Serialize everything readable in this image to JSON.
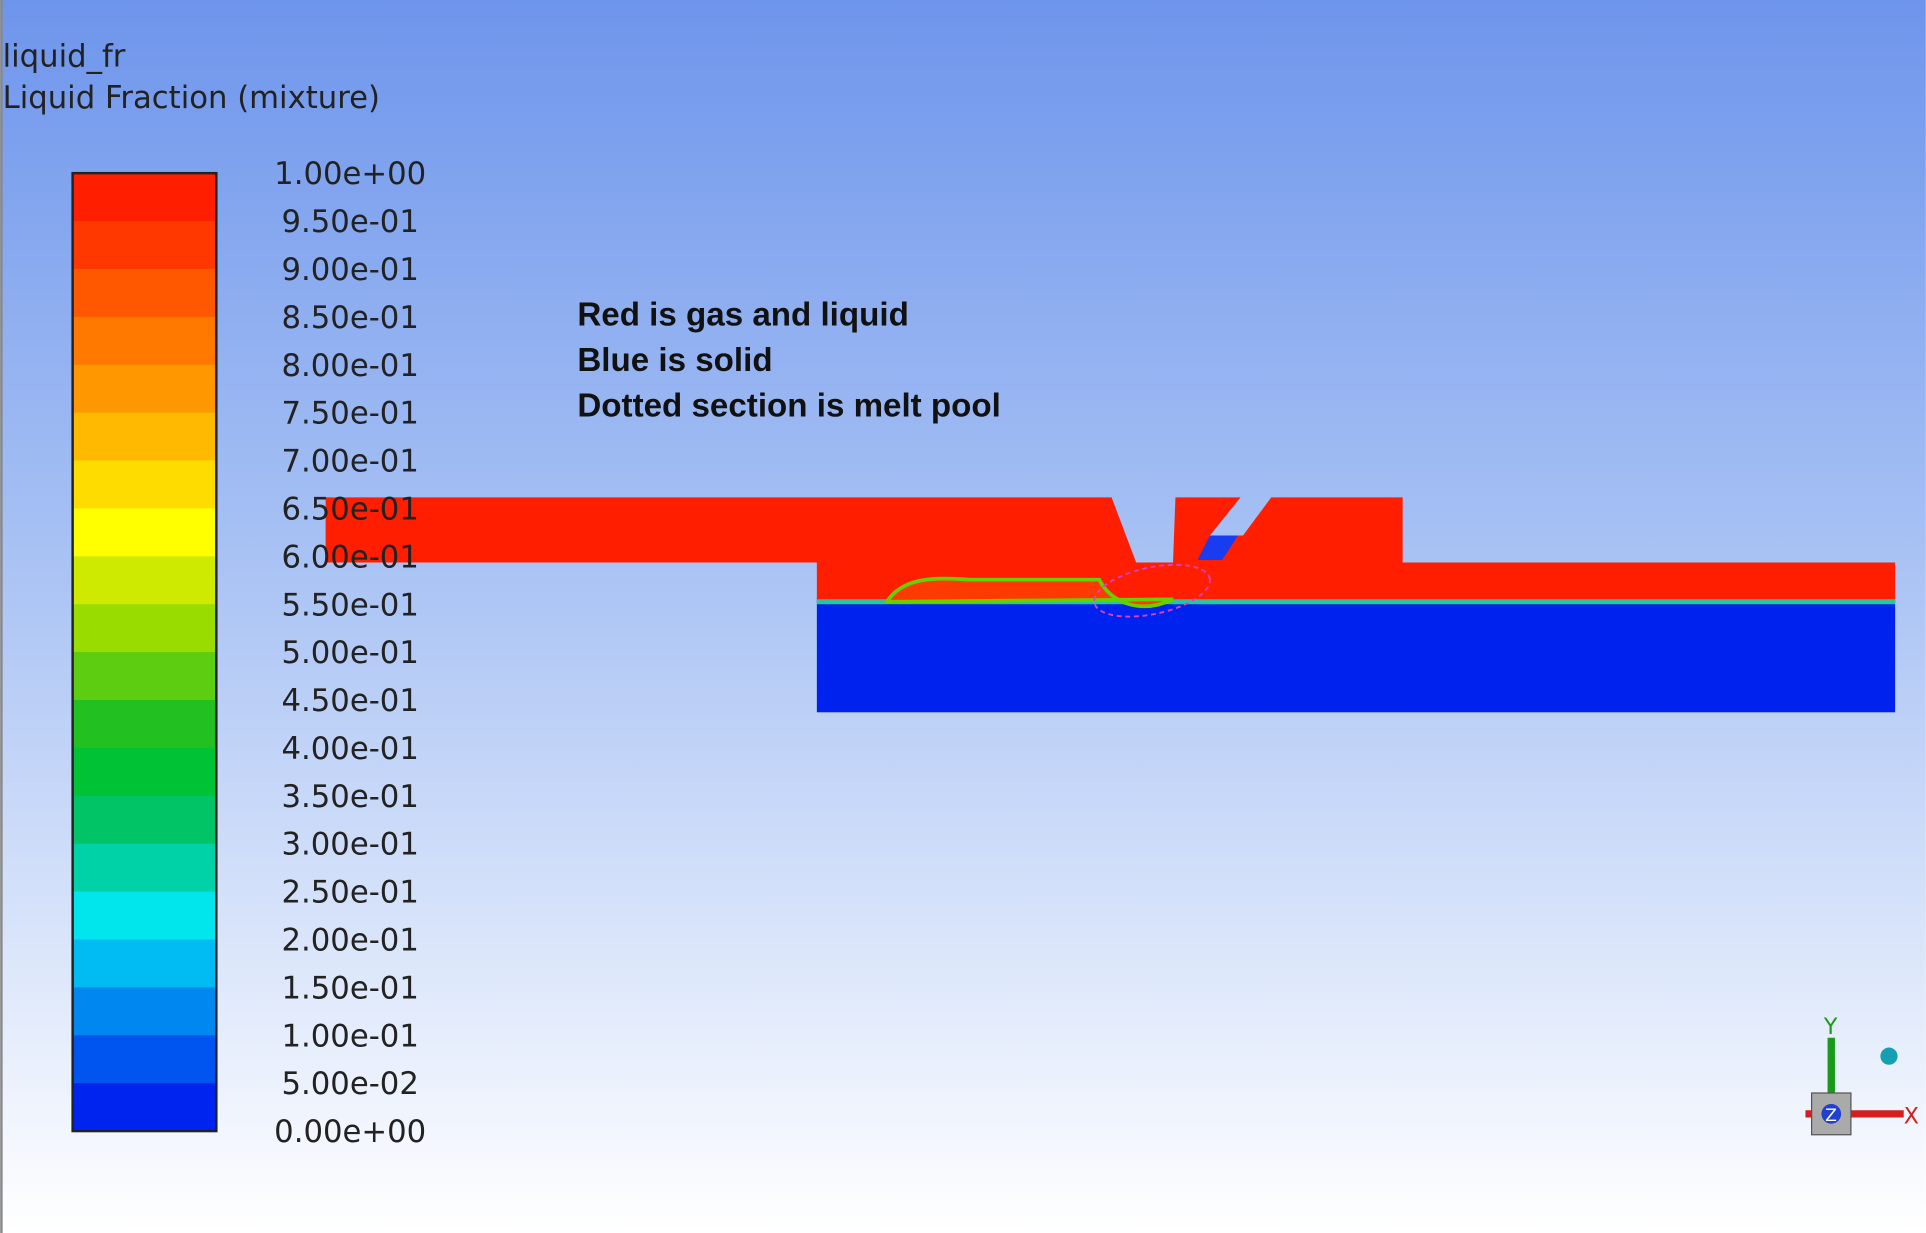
{
  "header": {
    "variable": "liquid_fr",
    "title": "Liquid Fraction (mixture)"
  },
  "legend": {
    "labels": [
      "1.00e+00",
      "9.50e-01",
      "9.00e-01",
      "8.50e-01",
      "8.00e-01",
      "7.50e-01",
      "7.00e-01",
      "6.50e-01",
      "6.00e-01",
      "5.50e-01",
      "5.00e-01",
      "4.50e-01",
      "4.00e-01",
      "3.50e-01",
      "3.00e-01",
      "2.50e-01",
      "2.00e-01",
      "1.50e-01",
      "1.00e-01",
      "5.00e-02",
      "0.00e+00"
    ],
    "colors": [
      "#ff1e00",
      "#ff3800",
      "#ff5800",
      "#ff7800",
      "#ff9800",
      "#ffba00",
      "#ffdc00",
      "#ffff00",
      "#cdea00",
      "#98dc00",
      "#5ccd10",
      "#22c020",
      "#00c235",
      "#00c465",
      "#00d2a8",
      "#00e6ec",
      "#00bcf2",
      "#0088f0",
      "#0054f0",
      "#0024f0"
    ]
  },
  "annotations": [
    "Red is gas and liquid",
    "Blue is solid",
    "Dotted section is melt pool"
  ],
  "axes": {
    "y": "Y",
    "x": "X",
    "z": "Z"
  }
}
